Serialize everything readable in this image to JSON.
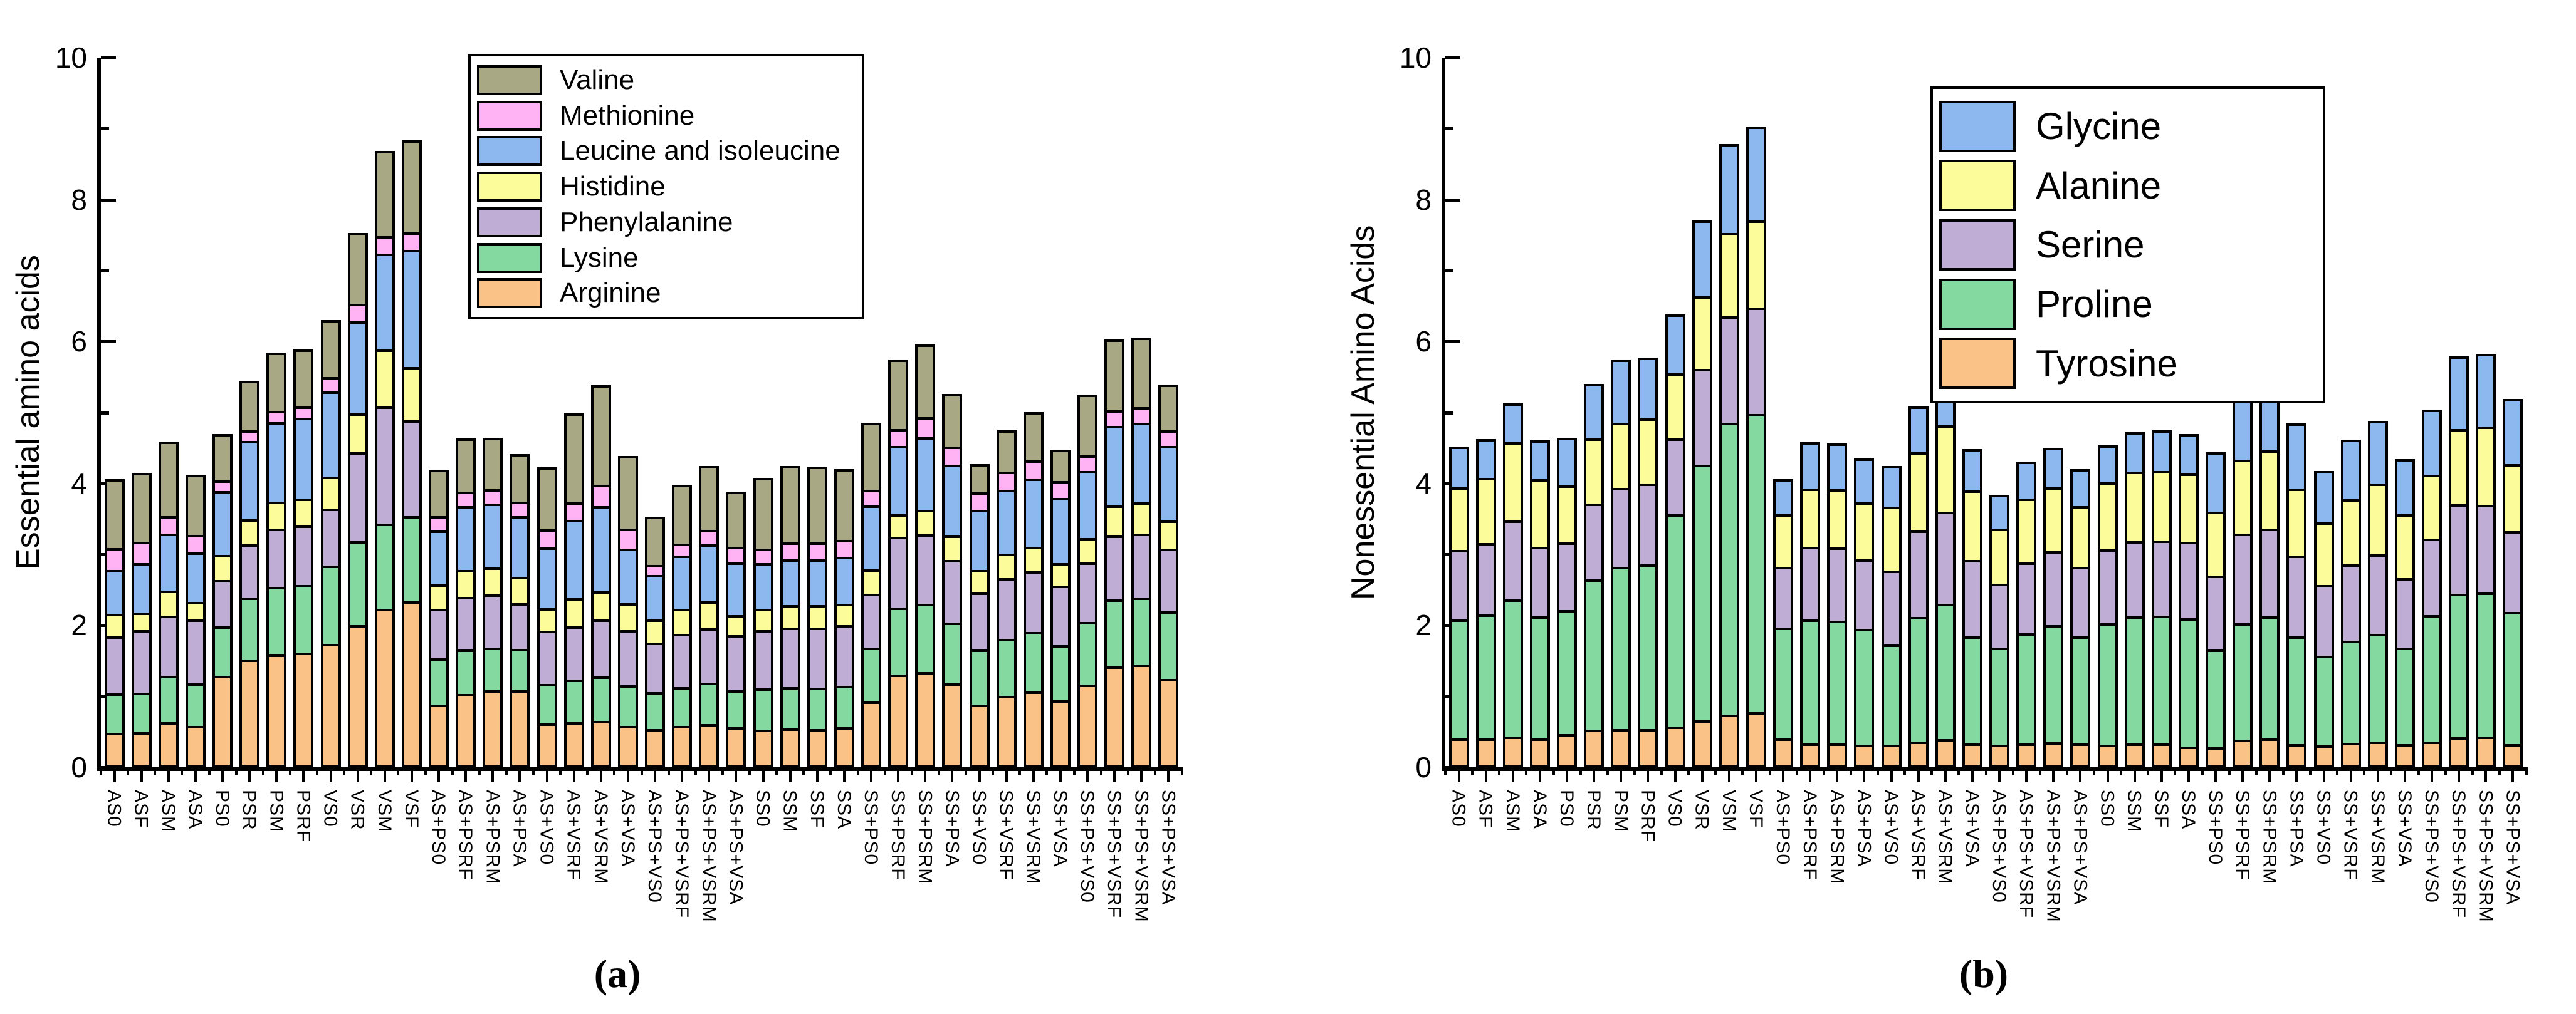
{
  "figure": {
    "background": "#ffffff",
    "captions": {
      "a": "(a)",
      "b": "(b)"
    }
  },
  "chart_data": [
    {
      "type": "bar",
      "stacked": true,
      "caption": "(a)",
      "ylabel": "Essential amino acids",
      "xlabel": "",
      "ylim": [
        0,
        10
      ],
      "yticks": [
        0,
        2,
        4,
        6,
        8,
        10
      ],
      "grid": false,
      "legend_position": "inside-top-left",
      "categories": [
        "AS0",
        "ASF",
        "ASM",
        "ASA",
        "PS0",
        "PSR",
        "PSM",
        "PSRF",
        "VS0",
        "VSR",
        "VSM",
        "VSF",
        "AS+PS0",
        "AS+PSRF",
        "AS+PSRM",
        "AS+PSA",
        "AS+VS0",
        "AS+VSRF",
        "AS+VSRM",
        "AS+VSA",
        "AS+PS+VS0",
        "AS+PS+VSRF",
        "AS+PS+VSRM",
        "AS+PS+VSA",
        "SS0",
        "SSM",
        "SSF",
        "SSA",
        "SS+PS0",
        "SS+PSRF",
        "SS+PSRM",
        "SS+PSA",
        "SS+VS0",
        "SS+VSRF",
        "SS+VSRM",
        "SS+VSA",
        "SS+PS+VS0",
        "SS+PS+VSRF",
        "SS+PS+VSRM",
        "SS+PS+VSA"
      ],
      "series": [
        {
          "name": "Valine",
          "color": "#A9A884",
          "values": [
            0.97,
            0.97,
            1.05,
            0.85,
            0.65,
            0.7,
            0.82,
            0.8,
            0.8,
            1.0,
            1.2,
            1.3,
            0.65,
            0.75,
            0.72,
            0.67,
            0.87,
            1.25,
            1.4,
            1.02,
            0.68,
            0.83,
            0.9,
            0.78,
            1.0,
            1.08,
            1.07,
            1.0,
            0.94,
            0.98,
            1.02,
            0.74,
            0.4,
            0.58,
            0.68,
            0.44,
            0.86,
            1.0,
            0.98,
            0.64
          ]
        },
        {
          "name": "Methionine",
          "color": "#FFB3F4",
          "values": [
            0.31,
            0.3,
            0.25,
            0.25,
            0.15,
            0.15,
            0.16,
            0.16,
            0.2,
            0.25,
            0.25,
            0.25,
            0.2,
            0.2,
            0.2,
            0.2,
            0.26,
            0.25,
            0.3,
            0.28,
            0.14,
            0.17,
            0.2,
            0.22,
            0.2,
            0.24,
            0.24,
            0.24,
            0.22,
            0.24,
            0.28,
            0.26,
            0.25,
            0.26,
            0.26,
            0.24,
            0.22,
            0.22,
            0.22,
            0.22
          ]
        },
        {
          "name": "Leucine and isoleucine",
          "color": "#8DB7EF",
          "values": [
            0.62,
            0.7,
            0.8,
            0.7,
            0.9,
            1.1,
            1.12,
            1.14,
            1.2,
            1.3,
            1.35,
            1.65,
            0.76,
            0.9,
            0.9,
            0.86,
            0.86,
            1.1,
            1.2,
            0.77,
            0.63,
            0.75,
            0.8,
            0.74,
            0.64,
            0.64,
            0.64,
            0.66,
            0.9,
            0.96,
            1.02,
            1.0,
            0.85,
            0.9,
            0.96,
            0.92,
            0.94,
            1.12,
            1.12,
            1.05
          ]
        },
        {
          "name": "Histidine",
          "color": "#FCFC9A",
          "values": [
            0.32,
            0.25,
            0.35,
            0.25,
            0.35,
            0.35,
            0.38,
            0.38,
            0.45,
            0.55,
            0.8,
            0.75,
            0.34,
            0.38,
            0.38,
            0.37,
            0.32,
            0.4,
            0.4,
            0.38,
            0.33,
            0.35,
            0.38,
            0.28,
            0.3,
            0.32,
            0.32,
            0.3,
            0.34,
            0.32,
            0.34,
            0.34,
            0.32,
            0.34,
            0.34,
            0.32,
            0.34,
            0.42,
            0.44,
            0.4
          ]
        },
        {
          "name": "Phenylalanine",
          "color": "#C0ADD5",
          "values": [
            0.8,
            0.88,
            0.85,
            0.9,
            0.65,
            0.75,
            0.82,
            0.84,
            0.8,
            1.25,
            1.65,
            1.35,
            0.7,
            0.74,
            0.75,
            0.64,
            0.75,
            0.75,
            0.8,
            0.78,
            0.7,
            0.75,
            0.77,
            0.78,
            0.82,
            0.84,
            0.85,
            0.86,
            0.76,
            1.0,
            0.98,
            0.88,
            0.8,
            0.86,
            0.86,
            0.84,
            0.84,
            0.9,
            0.9,
            0.88
          ]
        },
        {
          "name": "Lysine",
          "color": "#83D9A0",
          "values": [
            0.56,
            0.56,
            0.65,
            0.6,
            0.7,
            0.87,
            0.95,
            0.95,
            1.1,
            1.18,
            1.2,
            1.2,
            0.65,
            0.63,
            0.6,
            0.58,
            0.56,
            0.6,
            0.63,
            0.57,
            0.52,
            0.55,
            0.58,
            0.52,
            0.58,
            0.58,
            0.58,
            0.58,
            0.76,
            0.94,
            0.96,
            0.86,
            0.78,
            0.8,
            0.84,
            0.78,
            0.88,
            0.94,
            0.94,
            0.95
          ]
        },
        {
          "name": "Arginine",
          "color": "#FBC287",
          "values": [
            0.45,
            0.46,
            0.6,
            0.55,
            1.25,
            1.48,
            1.55,
            1.58,
            1.7,
            1.97,
            2.2,
            2.3,
            0.85,
            1.0,
            1.05,
            1.05,
            0.58,
            0.6,
            0.62,
            0.55,
            0.5,
            0.55,
            0.57,
            0.53,
            0.49,
            0.51,
            0.5,
            0.53,
            0.89,
            1.27,
            1.31,
            1.15,
            0.85,
            0.97,
            1.03,
            0.91,
            1.13,
            1.39,
            1.41,
            1.21
          ]
        }
      ]
    },
    {
      "type": "bar",
      "stacked": true,
      "caption": "(b)",
      "ylabel": "Nonessential Amino Acids",
      "xlabel": "",
      "ylim": [
        0,
        10
      ],
      "yticks": [
        0,
        2,
        4,
        6,
        8,
        10
      ],
      "grid": false,
      "legend_position": "inside-top-left",
      "categories": [
        "AS0",
        "ASF",
        "ASM",
        "ASA",
        "PS0",
        "PSR",
        "PSM",
        "PSRF",
        "VS0",
        "VSR",
        "VSM",
        "VSF",
        "AS+PS0",
        "AS+PSRF",
        "AS+PSRM",
        "AS+PSA",
        "AS+VS0",
        "AS+VSRF",
        "AS+VSRM",
        "AS+VSA",
        "AS+PS+VS0",
        "AS+PS+VSRF",
        "AS+PS+VSRM",
        "AS+PS+VSA",
        "SS0",
        "SSM",
        "SSF",
        "SSA",
        "SS+PS0",
        "SS+PSRF",
        "SS+PSRM",
        "SS+PSA",
        "SS+VS0",
        "SS+VSRF",
        "SS+VSRM",
        "SS+VSA",
        "SS+PS+VS0",
        "SS+PS+VSRF",
        "SS+PS+VSRM",
        "SS+PS+VSA"
      ],
      "series": [
        {
          "name": "Glycine",
          "color": "#8DB7EF",
          "values": [
            0.57,
            0.55,
            0.55,
            0.55,
            0.67,
            0.77,
            0.89,
            0.86,
            0.83,
            1.07,
            1.25,
            1.32,
            0.49,
            0.65,
            0.64,
            0.62,
            0.57,
            0.64,
            0.68,
            0.58,
            0.48,
            0.52,
            0.56,
            0.52,
            0.52,
            0.56,
            0.57,
            0.56,
            0.84,
            0.98,
            1.02,
            0.92,
            0.72,
            0.84,
            0.88,
            0.78,
            0.92,
            1.02,
            1.02,
            0.92
          ]
        },
        {
          "name": "Alanine",
          "color": "#FCFC9A",
          "values": [
            0.88,
            0.92,
            1.1,
            0.95,
            0.8,
            0.92,
            0.92,
            0.92,
            0.92,
            1.02,
            1.17,
            1.23,
            0.74,
            0.82,
            0.82,
            0.8,
            0.9,
            1.1,
            1.22,
            0.98,
            0.78,
            0.9,
            0.9,
            0.86,
            0.94,
            0.98,
            0.98,
            0.96,
            0.9,
            1.04,
            1.1,
            0.94,
            0.88,
            0.92,
            1.0,
            0.9,
            0.9,
            1.06,
            1.1,
            0.94
          ]
        },
        {
          "name": "Serine",
          "color": "#C0ADD5",
          "values": [
            0.98,
            1.01,
            1.11,
            0.98,
            0.95,
            1.07,
            1.11,
            1.14,
            1.07,
            1.35,
            1.5,
            1.5,
            0.86,
            1.02,
            1.03,
            0.98,
            1.04,
            1.22,
            1.3,
            1.08,
            0.9,
            1.0,
            1.04,
            0.98,
            1.04,
            1.06,
            1.06,
            1.08,
            1.04,
            1.26,
            1.24,
            1.14,
            1.0,
            1.08,
            1.12,
            0.98,
            1.08,
            1.26,
            1.24,
            1.14
          ]
        },
        {
          "name": "Proline",
          "color": "#83D9A0",
          "values": [
            1.68,
            1.75,
            1.93,
            1.72,
            1.75,
            2.12,
            2.29,
            2.32,
            2.99,
            3.6,
            4.11,
            4.2,
            1.56,
            1.75,
            1.73,
            1.63,
            1.41,
            1.76,
            1.91,
            1.51,
            1.37,
            1.55,
            1.65,
            1.51,
            1.71,
            1.79,
            1.8,
            1.81,
            1.38,
            1.64,
            1.72,
            1.52,
            1.26,
            1.44,
            1.52,
            1.36,
            1.78,
            2.02,
            2.03,
            1.86
          ]
        },
        {
          "name": "Tyrosine",
          "color": "#FBC287",
          "values": [
            0.37,
            0.37,
            0.4,
            0.37,
            0.43,
            0.49,
            0.5,
            0.5,
            0.54,
            0.63,
            0.71,
            0.74,
            0.37,
            0.3,
            0.3,
            0.28,
            0.28,
            0.33,
            0.36,
            0.3,
            0.28,
            0.3,
            0.32,
            0.3,
            0.28,
            0.3,
            0.3,
            0.26,
            0.25,
            0.35,
            0.37,
            0.29,
            0.27,
            0.31,
            0.33,
            0.29,
            0.33,
            0.39,
            0.4,
            0.29
          ]
        }
      ]
    }
  ]
}
